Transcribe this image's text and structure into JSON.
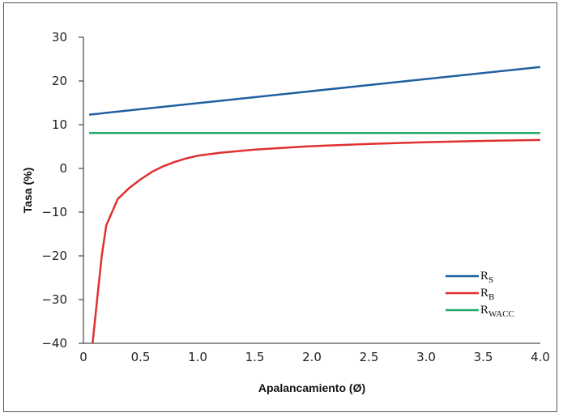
{
  "chart_data": {
    "type": "line",
    "xlabel": "Apalancamiento (Ø)",
    "ylabel": "Tasa (%)",
    "xlim": [
      0,
      4.0
    ],
    "ylim": [
      -40,
      30
    ],
    "x_ticks": [
      "0",
      "0.5",
      "1.0",
      "1.5",
      "2.0",
      "2.5",
      "3.0",
      "3.5",
      "4.0"
    ],
    "y_ticks": [
      "30",
      "20",
      "10",
      "0",
      "−10",
      "−20",
      "−30",
      "−40"
    ],
    "grid": false,
    "legend_position": "bottom-right",
    "series": [
      {
        "name": "RS",
        "legend_main": "R",
        "legend_sub": "S",
        "color": "#1f5fa0",
        "x": [
          0.05,
          4.0
        ],
        "y": [
          12.3,
          23.2
        ]
      },
      {
        "name": "RB",
        "legend_main": "R",
        "legend_sub": "B",
        "color": "#e03030",
        "x": [
          0.08,
          0.12,
          0.16,
          0.2,
          0.25,
          0.3,
          0.4,
          0.5,
          0.6,
          0.7,
          0.8,
          0.9,
          1.0,
          1.2,
          1.5,
          2.0,
          2.5,
          3.0,
          3.5,
          4.0
        ],
        "y": [
          -40,
          -30,
          -20,
          -13,
          -10,
          -7,
          -4.5,
          -2.5,
          -0.8,
          0.5,
          1.5,
          2.3,
          2.9,
          3.6,
          4.3,
          5.1,
          5.6,
          6.0,
          6.3,
          6.5
        ]
      },
      {
        "name": "RWACC",
        "legend_main": "R",
        "legend_sub": "WACC",
        "color": "#22aa66",
        "x": [
          0.05,
          4.0
        ],
        "y": [
          8.1,
          8.1
        ]
      }
    ]
  }
}
